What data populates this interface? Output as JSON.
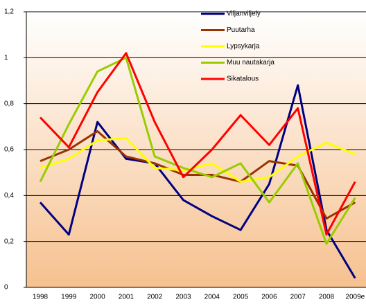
{
  "chart_data": {
    "type": "line",
    "categories": [
      "1998",
      "1999",
      "2000",
      "2001",
      "2002",
      "2003",
      "2004",
      "2005",
      "2006",
      "2007",
      "2008",
      "2009e"
    ],
    "series": [
      {
        "name": "Viljanviljely",
        "color": "#000080",
        "values": [
          0.37,
          0.23,
          0.72,
          0.56,
          0.54,
          0.38,
          0.31,
          0.25,
          0.45,
          0.88,
          0.25,
          0.04
        ]
      },
      {
        "name": "Puutarha",
        "color": "#993300",
        "values": [
          0.55,
          0.6,
          0.68,
          0.57,
          0.54,
          0.49,
          0.49,
          0.46,
          0.55,
          0.53,
          0.3,
          0.37
        ]
      },
      {
        "name": "Lypsykarja",
        "color": "#ffff00",
        "values": [
          0.52,
          0.56,
          0.64,
          0.65,
          0.52,
          0.51,
          0.54,
          0.46,
          0.48,
          0.57,
          0.63,
          0.58
        ]
      },
      {
        "name": "Muu nautakarja",
        "color": "#99cc00",
        "values": [
          0.46,
          0.71,
          0.94,
          1.0,
          0.57,
          0.52,
          0.48,
          0.54,
          0.37,
          0.54,
          0.19,
          0.39
        ]
      },
      {
        "name": "Sikatalous",
        "color": "#ff0000",
        "values": [
          0.74,
          0.61,
          0.85,
          1.02,
          0.72,
          0.48,
          0.6,
          0.75,
          0.62,
          0.78,
          0.23,
          0.46
        ]
      }
    ],
    "ylim": [
      0,
      1.2
    ],
    "yticks": [
      0,
      {
        "value": 0.2,
        "label": "0,2"
      },
      {
        "value": 0.4,
        "label": "0,4"
      },
      {
        "value": 0.6,
        "label": "0,6"
      },
      {
        "value": 0.8,
        "label": "0,8"
      },
      1,
      {
        "value": 1.2,
        "label": "1,2"
      }
    ],
    "grid": true,
    "legend": "top-right"
  }
}
